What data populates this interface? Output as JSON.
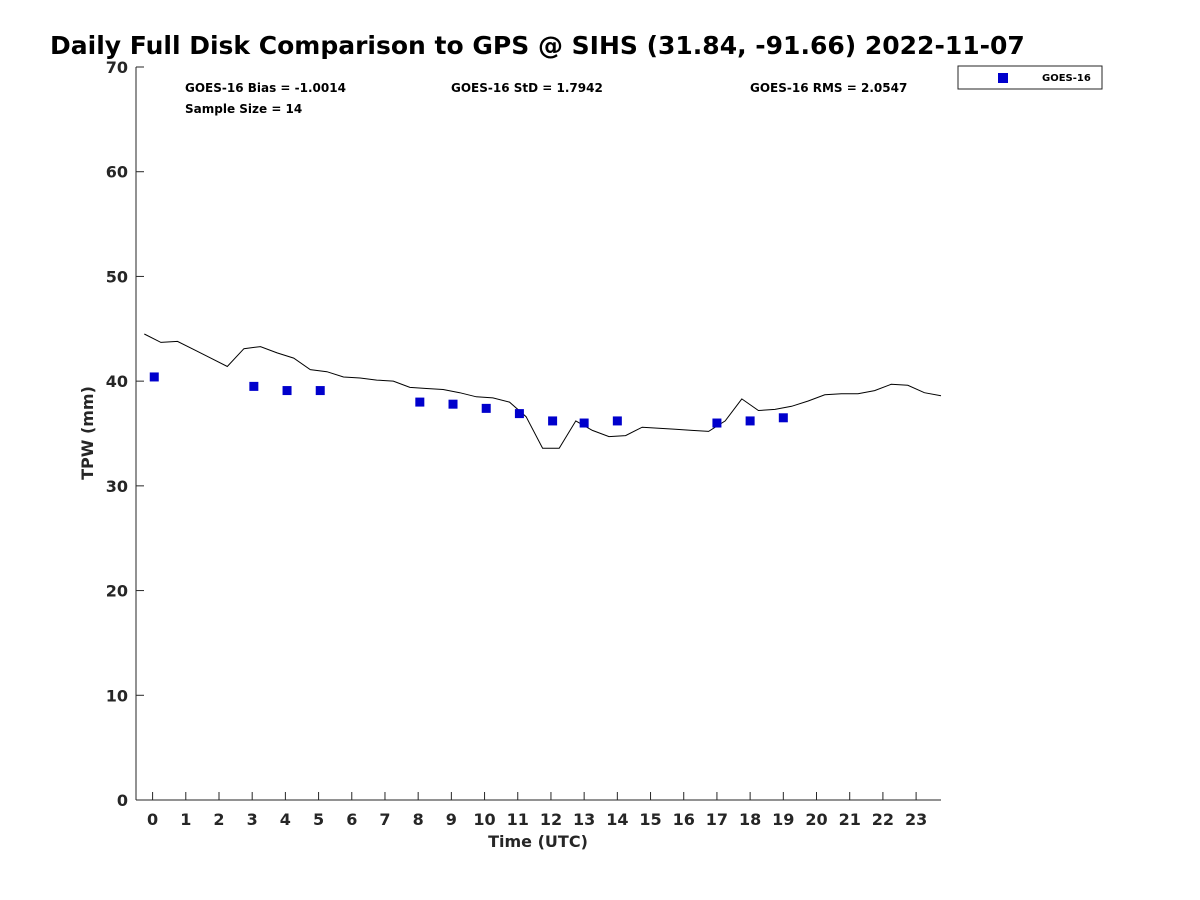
{
  "chart_data": {
    "type": "scatter",
    "title": "Daily Full Disk Comparison to GPS @ SIHS (31.84, -91.66) 2022-11-07",
    "xlabel": "Time (UTC)",
    "ylabel": "TPW (mm)",
    "xlim": [
      -0.5,
      23.75
    ],
    "ylim": [
      0,
      70
    ],
    "x_ticks": [
      0,
      1,
      2,
      3,
      4,
      5,
      6,
      7,
      8,
      9,
      10,
      11,
      12,
      13,
      14,
      15,
      16,
      17,
      18,
      19,
      20,
      21,
      22,
      23
    ],
    "x_tick_labels": [
      "0",
      "1",
      "2",
      "3",
      "4",
      "5",
      "6",
      "7",
      "8",
      "9",
      "10",
      "11",
      "12",
      "13",
      "14",
      "15",
      "16",
      "17",
      "18",
      "19",
      "20",
      "21",
      "22",
      "23"
    ],
    "y_ticks": [
      0,
      10,
      20,
      30,
      40,
      50,
      60,
      70
    ],
    "y_tick_labels": [
      "0",
      "10",
      "20",
      "30",
      "40",
      "50",
      "60",
      "70"
    ],
    "grid": false,
    "legend_position": "outside top-right",
    "series": [
      {
        "name": "GOES-16",
        "kind": "scatter",
        "marker": "square",
        "color": "#0000cc",
        "x": [
          0.05,
          3.05,
          4.05,
          5.05,
          8.05,
          9.05,
          10.05,
          11.05,
          12.05,
          13.0,
          14.0,
          17.0,
          18.0,
          19.0
        ],
        "y": [
          40.4,
          39.5,
          39.1,
          39.1,
          38.0,
          37.8,
          37.4,
          36.9,
          36.2,
          36.0,
          36.2,
          36.0,
          36.2,
          36.5
        ]
      },
      {
        "kind": "line",
        "color": "#000000",
        "x": [
          -0.25,
          0.25,
          0.75,
          1.25,
          1.75,
          2.25,
          2.75,
          3.25,
          3.75,
          4.25,
          4.75,
          5.25,
          5.75,
          6.25,
          6.75,
          7.25,
          7.75,
          8.25,
          8.75,
          9.25,
          9.75,
          10.25,
          10.75,
          11.25,
          11.75,
          12.25,
          12.75,
          13.25,
          13.75,
          14.25,
          14.75,
          15.25,
          15.75,
          16.25,
          16.75,
          17.25,
          17.75,
          18.25,
          18.75,
          19.25,
          19.75,
          20.25,
          20.75,
          21.25,
          21.75,
          22.25,
          22.75,
          23.25,
          23.75
        ],
        "y": [
          44.5,
          43.7,
          43.8,
          43.0,
          42.2,
          41.4,
          43.1,
          43.3,
          42.7,
          42.2,
          41.1,
          40.9,
          40.4,
          40.3,
          40.1,
          40.0,
          39.4,
          39.3,
          39.2,
          38.9,
          38.5,
          38.4,
          38.0,
          36.6,
          33.6,
          33.6,
          36.2,
          35.3,
          34.7,
          34.8,
          35.6,
          35.5,
          35.4,
          35.3,
          35.2,
          36.2,
          38.3,
          37.2,
          37.3,
          37.6,
          38.1,
          38.7,
          38.8,
          38.8,
          39.1,
          39.7,
          39.6,
          38.9,
          38.6
        ]
      }
    ],
    "annotations": {
      "bias": "GOES-16 Bias = -1.0014",
      "std": "GOES-16 StD = 1.7942",
      "rms": "GOES-16 RMS = 2.0547",
      "sample_size": "Sample Size = 14"
    }
  }
}
